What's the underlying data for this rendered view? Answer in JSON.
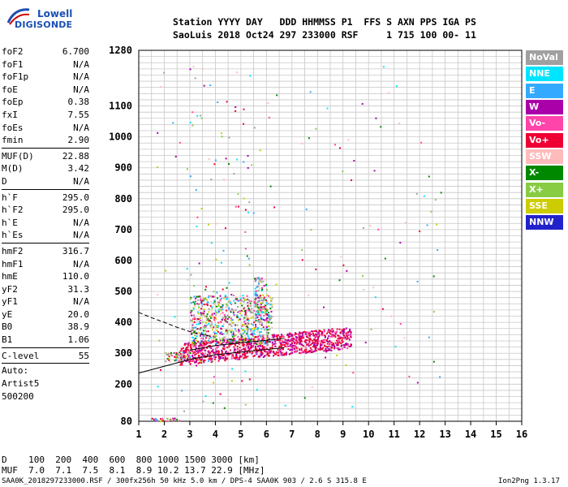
{
  "logo": {
    "line1": "Lowell",
    "line2": "DIGISONDE"
  },
  "header": {
    "line1": "Station YYYY DAY   DDD HHMMSS P1  FFS S AXN PPS IGA PS",
    "line2": "SaoLuis 2018 Oct24 297 233000 RSF     1 715 100 00- 11"
  },
  "params": {
    "group1": [
      {
        "name": "foF2",
        "value": "6.700"
      },
      {
        "name": "foF1",
        "value": "N/A"
      },
      {
        "name": "foF1p",
        "value": "N/A"
      },
      {
        "name": "foE",
        "value": "N/A"
      },
      {
        "name": "foEp",
        "value": "0.38"
      },
      {
        "name": "fxI",
        "value": "7.55"
      },
      {
        "name": "foEs",
        "value": "N/A"
      },
      {
        "name": "fmin",
        "value": "2.90"
      }
    ],
    "group2": [
      {
        "name": "MUF(D)",
        "value": "22.88"
      },
      {
        "name": "M(D)",
        "value": "3.42"
      },
      {
        "name": "D",
        "value": "N/A"
      }
    ],
    "group3": [
      {
        "name": "h`F",
        "value": "295.0"
      },
      {
        "name": "h`F2",
        "value": "295.0"
      },
      {
        "name": "h`E",
        "value": "N/A"
      },
      {
        "name": "h`Es",
        "value": "N/A"
      }
    ],
    "group4": [
      {
        "name": "hmF2",
        "value": "316.7"
      },
      {
        "name": "hmF1",
        "value": "N/A"
      },
      {
        "name": "hmE",
        "value": "110.0"
      },
      {
        "name": "yF2",
        "value": "31.3"
      },
      {
        "name": "yF1",
        "value": "N/A"
      },
      {
        "name": "yE",
        "value": "20.0"
      },
      {
        "name": "B0",
        "value": "38.9"
      },
      {
        "name": "B1",
        "value": "1.06"
      }
    ],
    "clevel": {
      "name": "C-level",
      "value": "55"
    },
    "auto": [
      "Auto:",
      "Artist5",
      "500200"
    ]
  },
  "legend": [
    {
      "label": "NoVal",
      "color": "#a0a0a0"
    },
    {
      "label": "NNE",
      "color": "#00e5ff"
    },
    {
      "label": "E",
      "color": "#33aaff"
    },
    {
      "label": "W",
      "color": "#aa00aa"
    },
    {
      "label": "Vo-",
      "color": "#ff44aa"
    },
    {
      "label": "Vo+",
      "color": "#ee0033"
    },
    {
      "label": "SSW",
      "color": "#ffbbbb"
    },
    {
      "label": "X-",
      "color": "#008800"
    },
    {
      "label": "X+",
      "color": "#88cc44"
    },
    {
      "label": "SSE",
      "color": "#cccc00"
    },
    {
      "label": "NNW",
      "color": "#2222cc"
    }
  ],
  "footer": {
    "d_row": "D    100  200  400  600  800 1000 1500 3000 [km]",
    "muf_row": "MUF  7.0  7.1  7.5  8.1  8.9 10.2 13.7 22.9 [MHz]",
    "file": "SAA0K_2018297233000.RSF / 300fx256h 50 kHz 5.0 km / DPS-4 SAA0K 903 / 2.6 S 315.8 E",
    "version": "Ion2Png 1.3.17"
  },
  "chart_data": {
    "type": "scatter",
    "xlim": [
      1,
      16
    ],
    "ylim": [
      80,
      1280
    ],
    "x_ticks": [
      "1",
      "2",
      "3",
      "4",
      "5",
      "6",
      "7",
      "8",
      "9",
      "10",
      "11",
      "12",
      "13",
      "14",
      "15",
      "16"
    ],
    "y_ticks": [
      "80",
      "200",
      "300",
      "400",
      "500",
      "600",
      "700",
      "800",
      "900",
      "1000",
      "1100",
      "1280"
    ],
    "grid": true,
    "trace_cluster": {
      "x_range": [
        2.2,
        9.3
      ],
      "y_range": [
        270,
        420
      ]
    },
    "profile_curve": {
      "x": [
        1.0,
        2.0,
        3.0,
        4.0,
        5.0,
        6.0,
        6.7
      ],
      "y": [
        236,
        258,
        280,
        295,
        304,
        312,
        318
      ]
    },
    "dashed_curve": {
      "x": [
        1.0,
        1.5,
        2.0,
        2.5,
        3.0,
        3.5,
        4.0
      ],
      "y": [
        432,
        415,
        400,
        384,
        370,
        360,
        352
      ]
    }
  }
}
